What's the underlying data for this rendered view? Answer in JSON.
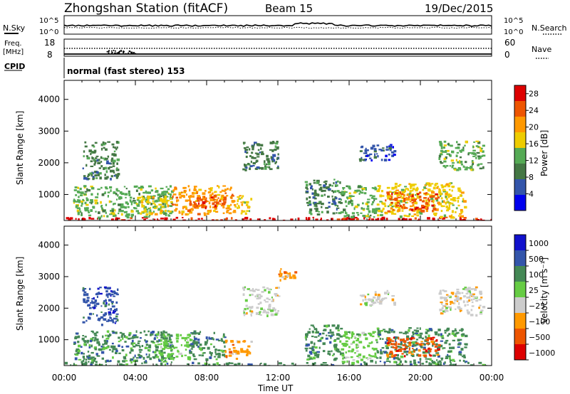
{
  "header": {
    "title": "Zhongshan Station (fitACF)",
    "beam": "Beam 15",
    "date": "19/Dec/2015"
  },
  "noise_panel": {
    "left_label": "N.Sky",
    "right_label": "N.Search",
    "y_ticks": [
      "10^5",
      "10^0"
    ]
  },
  "freq_panel": {
    "left_label_1": "Freq.",
    "left_label_2": "[MHz]",
    "left_ticks": [
      "18",
      "8"
    ],
    "right_label": "Nave",
    "right_ticks": [
      "60",
      "0"
    ]
  },
  "cpid_panel": {
    "label": "CPID",
    "mode_text": "normal (fast stereo) 153"
  },
  "x_axis": {
    "title": "Time UT",
    "tick_labels": [
      "00:00",
      "04:00",
      "08:00",
      "12:00",
      "16:00",
      "20:00",
      "00:00"
    ],
    "range_hours": [
      0,
      24
    ]
  },
  "colors": {
    "power": [
      "#0000ee",
      "#3355aa",
      "#447744",
      "#55aa55",
      "#eecc00",
      "#ff9900",
      "#ee5500",
      "#dd0000"
    ],
    "velocity": [
      "#dd0000",
      "#ee5500",
      "#ff9900",
      "#cccccc",
      "#66cc44",
      "#448855",
      "#3355aa",
      "#1111cc"
    ]
  },
  "chart_data": [
    {
      "type": "heatmap",
      "panel": "power",
      "ylabel": "Slant Range [km]",
      "ylim": [
        180,
        4600
      ],
      "y_ticks": [
        "1000",
        "2000",
        "3000",
        "4000"
      ],
      "y_tick_values": [
        1000,
        2000,
        3000,
        4000
      ],
      "colorbar_label": "Power [dB]",
      "colorbar_ticks": [
        "4",
        "8",
        "12",
        "16",
        "20",
        "24",
        "28"
      ],
      "colorbar_range": [
        0,
        30
      ],
      "regions": [
        {
          "t0": 0.0,
          "t1": 24.0,
          "r0": 180,
          "r1": 300,
          "level": 7
        },
        {
          "t0": 0.5,
          "t1": 6.0,
          "r0": 300,
          "r1": 1300,
          "level": 3
        },
        {
          "t0": 1.0,
          "t1": 3.0,
          "r0": 1500,
          "r1": 2700,
          "level": 2
        },
        {
          "t0": 4.0,
          "t1": 6.0,
          "r0": 400,
          "r1": 1000,
          "level": 4
        },
        {
          "t0": 6.0,
          "t1": 9.5,
          "r0": 400,
          "r1": 1300,
          "level": 5
        },
        {
          "t0": 7.0,
          "t1": 9.0,
          "r0": 600,
          "r1": 1000,
          "level": 6
        },
        {
          "t0": 9.5,
          "t1": 10.5,
          "r0": 400,
          "r1": 1000,
          "level": 4
        },
        {
          "t0": 10.0,
          "t1": 12.0,
          "r0": 1800,
          "r1": 2700,
          "level": 2
        },
        {
          "t0": 13.5,
          "t1": 15.5,
          "r0": 400,
          "r1": 1500,
          "level": 2
        },
        {
          "t0": 15.5,
          "t1": 17.5,
          "r0": 300,
          "r1": 1300,
          "level": 3
        },
        {
          "t0": 16.5,
          "t1": 18.5,
          "r0": 2100,
          "r1": 2600,
          "level": 1
        },
        {
          "t0": 17.5,
          "t1": 22.5,
          "r0": 300,
          "r1": 1400,
          "level": 4
        },
        {
          "t0": 18.0,
          "t1": 21.0,
          "r0": 500,
          "r1": 1100,
          "level": 6
        },
        {
          "t0": 21.0,
          "t1": 23.5,
          "r0": 1800,
          "r1": 2700,
          "level": 3
        }
      ]
    },
    {
      "type": "heatmap",
      "panel": "velocity",
      "ylabel": "Slant Range [km]",
      "ylim": [
        180,
        4600
      ],
      "y_ticks": [
        "1000",
        "2000",
        "3000",
        "4000"
      ],
      "y_tick_values": [
        1000,
        2000,
        3000,
        4000
      ],
      "colorbar_label": "Velocity [m s⁻¹]",
      "colorbar_ticks": [
        "1000",
        "500",
        "100",
        "25",
        "−25",
        "−100",
        "−500",
        "−1000"
      ],
      "regions": [
        {
          "t0": 0.0,
          "t1": 24.0,
          "r0": 180,
          "r1": 300,
          "level": 5
        },
        {
          "t0": 0.5,
          "t1": 6.0,
          "r0": 300,
          "r1": 1300,
          "level": 5
        },
        {
          "t0": 1.0,
          "t1": 3.0,
          "r0": 1500,
          "r1": 2700,
          "level": 6
        },
        {
          "t0": 5.0,
          "t1": 7.0,
          "r0": 400,
          "r1": 1200,
          "level": 4
        },
        {
          "t0": 7.0,
          "t1": 9.0,
          "r0": 400,
          "r1": 1300,
          "level": 5
        },
        {
          "t0": 9.0,
          "t1": 10.5,
          "r0": 400,
          "r1": 1000,
          "level": 2
        },
        {
          "t0": 10.0,
          "t1": 12.0,
          "r0": 1800,
          "r1": 2700,
          "level": 3
        },
        {
          "t0": 12.0,
          "t1": 13.0,
          "r0": 2900,
          "r1": 3300,
          "level": 2
        },
        {
          "t0": 13.5,
          "t1": 15.5,
          "r0": 400,
          "r1": 1500,
          "level": 5
        },
        {
          "t0": 15.5,
          "t1": 17.5,
          "r0": 300,
          "r1": 1300,
          "level": 4
        },
        {
          "t0": 16.5,
          "t1": 18.5,
          "r0": 2100,
          "r1": 2600,
          "level": 3
        },
        {
          "t0": 17.5,
          "t1": 22.5,
          "r0": 300,
          "r1": 1400,
          "level": 5
        },
        {
          "t0": 18.0,
          "t1": 21.0,
          "r0": 500,
          "r1": 1100,
          "level": 1
        },
        {
          "t0": 21.0,
          "t1": 23.5,
          "r0": 1800,
          "r1": 2700,
          "level": 3
        }
      ]
    }
  ]
}
